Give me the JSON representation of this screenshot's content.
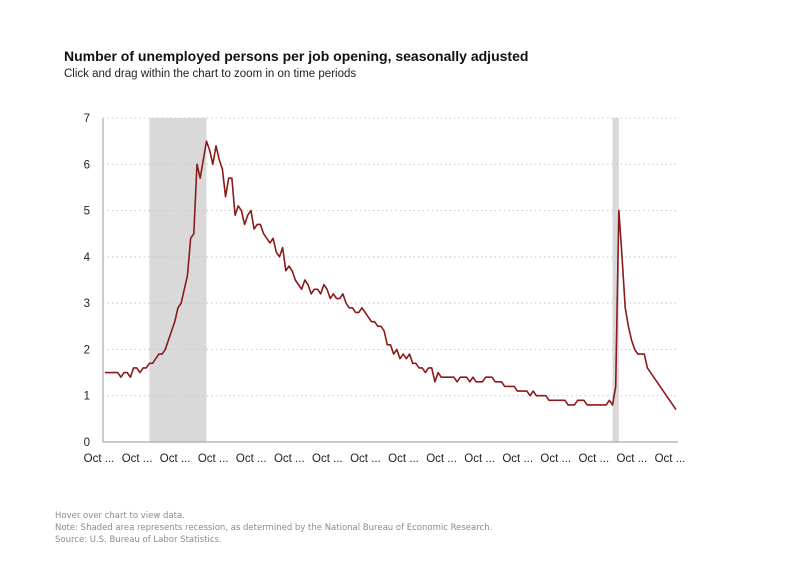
{
  "header": {
    "title": "Number of unemployed persons per job opening, seasonally adjusted",
    "subtitle": "Click and drag within the chart to zoom in on time periods"
  },
  "footer": {
    "hover": "Hover over chart to view data.",
    "note": "Note: Shaded area represents recession, as determined by the National Bureau of Economic Research.",
    "source": "Source: U.S. Bureau of Labor Statistics."
  },
  "chart_data": {
    "type": "line",
    "title": "Number of unemployed persons per job opening, seasonally adjusted",
    "xlabel": "",
    "ylabel": "",
    "ylim": [
      0,
      7
    ],
    "yticks": [
      0,
      1,
      2,
      3,
      4,
      5,
      6,
      7
    ],
    "grid": true,
    "line_color": "#8b1a1a",
    "recession_color": "#d9d9d9",
    "xtick_labels": [
      "Oct ...",
      "Oct ...",
      "Oct ...",
      "Oct ...",
      "Oct ...",
      "Oct ...",
      "Oct ...",
      "Oct ...",
      "Oct ...",
      "Oct ...",
      "Oct ...",
      "Oct ...",
      "Oct ...",
      "Oct ...",
      "Oct ...",
      "Oct ..."
    ],
    "xticks": [
      "2006-10",
      "2007-10",
      "2008-10",
      "2009-10",
      "2010-10",
      "2011-10",
      "2012-10",
      "2013-10",
      "2014-10",
      "2015-10",
      "2016-10",
      "2017-10",
      "2018-10",
      "2019-10",
      "2020-10",
      "2021-10"
    ],
    "recessions": [
      [
        "2007-12",
        "2009-06"
      ],
      [
        "2020-02",
        "2020-04"
      ]
    ],
    "series": [
      {
        "by_year": [
          {
            "year": 2006,
            "first_month": 10,
            "values": [
              1.5,
              1.5,
              1.5
            ]
          },
          {
            "year": 2007,
            "first_month": 1,
            "values": [
              1.5,
              1.5,
              1.4,
              1.5,
              1.5,
              1.4,
              1.6,
              1.6,
              1.5,
              1.6,
              1.6,
              1.7
            ]
          },
          {
            "year": 2008,
            "first_month": 1,
            "values": [
              1.7,
              1.8,
              1.9,
              1.9,
              2.0,
              2.2,
              2.4,
              2.6,
              2.9,
              3.0,
              3.3,
              3.6
            ]
          },
          {
            "year": 2009,
            "first_month": 1,
            "values": [
              4.4,
              4.5,
              6.0,
              5.7,
              6.1,
              6.5,
              6.3,
              6.0,
              6.4,
              6.1,
              5.9,
              5.3
            ]
          },
          {
            "year": 2010,
            "first_month": 1,
            "values": [
              5.7,
              5.7,
              4.9,
              5.1,
              5.0,
              4.7,
              4.9,
              5.0,
              4.6,
              4.7,
              4.7,
              4.5
            ]
          },
          {
            "year": 2011,
            "first_month": 1,
            "values": [
              4.4,
              4.3,
              4.4,
              4.1,
              4.0,
              4.2,
              3.7,
              3.8,
              3.7,
              3.5,
              3.4,
              3.3
            ]
          },
          {
            "year": 2012,
            "first_month": 1,
            "values": [
              3.5,
              3.4,
              3.2,
              3.3,
              3.3,
              3.2,
              3.4,
              3.3,
              3.1,
              3.2,
              3.1,
              3.1
            ]
          },
          {
            "year": 2013,
            "first_month": 1,
            "values": [
              3.2,
              3.0,
              2.9,
              2.9,
              2.8,
              2.8,
              2.9,
              2.8,
              2.7,
              2.6,
              2.6,
              2.5
            ]
          },
          {
            "year": 2014,
            "first_month": 1,
            "values": [
              2.5,
              2.4,
              2.1,
              2.1,
              1.9,
              2.0,
              1.8,
              1.9,
              1.8,
              1.9,
              1.7,
              1.7
            ]
          },
          {
            "year": 2015,
            "first_month": 1,
            "values": [
              1.6,
              1.6,
              1.5,
              1.6,
              1.6,
              1.3,
              1.5,
              1.4,
              1.4,
              1.4,
              1.4,
              1.4
            ]
          },
          {
            "year": 2016,
            "first_month": 1,
            "values": [
              1.3,
              1.4,
              1.4,
              1.4,
              1.3,
              1.4,
              1.3,
              1.3,
              1.3,
              1.4,
              1.4,
              1.4
            ]
          },
          {
            "year": 2017,
            "first_month": 1,
            "values": [
              1.3,
              1.3,
              1.3,
              1.2,
              1.2,
              1.2,
              1.2,
              1.1,
              1.1,
              1.1,
              1.1,
              1.0
            ]
          },
          {
            "year": 2018,
            "first_month": 1,
            "values": [
              1.1,
              1.0,
              1.0,
              1.0,
              1.0,
              0.9,
              0.9,
              0.9,
              0.9,
              0.9,
              0.9,
              0.8
            ]
          },
          {
            "year": 2019,
            "first_month": 1,
            "values": [
              0.8,
              0.8,
              0.9,
              0.9,
              0.9,
              0.8,
              0.8,
              0.8,
              0.8,
              0.8,
              0.8,
              0.8
            ]
          },
          {
            "year": 2020,
            "first_month": 1,
            "values": [
              0.9,
              0.8,
              1.2,
              5.0,
              4.0,
              2.9,
              2.5,
              2.2,
              2.0,
              1.9,
              1.9,
              1.9
            ]
          },
          {
            "year": 2021,
            "first_month": 1,
            "values": [
              1.6,
              1.5,
              1.4,
              1.3,
              1.2,
              1.1,
              1.0,
              0.9,
              0.8,
              0.7
            ]
          }
        ]
      }
    ]
  }
}
